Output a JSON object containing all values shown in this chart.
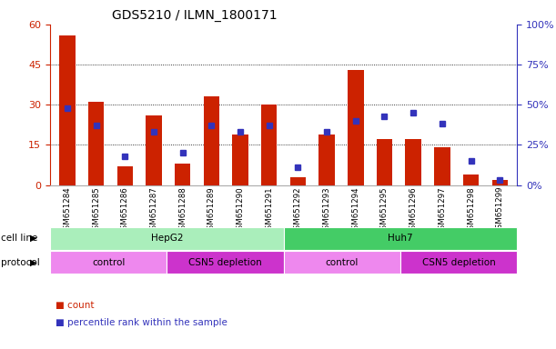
{
  "title": "GDS5210 / ILMN_1800171",
  "samples": [
    "GSM651284",
    "GSM651285",
    "GSM651286",
    "GSM651287",
    "GSM651288",
    "GSM651289",
    "GSM651290",
    "GSM651291",
    "GSM651292",
    "GSM651293",
    "GSM651294",
    "GSM651295",
    "GSM651296",
    "GSM651297",
    "GSM651298",
    "GSM651299"
  ],
  "red_values": [
    56,
    31,
    7,
    26,
    8,
    33,
    19,
    30,
    3,
    19,
    43,
    17,
    17,
    14,
    4,
    2
  ],
  "blue_values": [
    48,
    37,
    18,
    33,
    20,
    37,
    33,
    37,
    11,
    33,
    40,
    43,
    45,
    38,
    15,
    3
  ],
  "red_color": "#CC2200",
  "blue_color": "#3333BB",
  "ylim_left": [
    0,
    60
  ],
  "ylim_right": [
    0,
    100
  ],
  "yticks_left": [
    0,
    15,
    30,
    45,
    60
  ],
  "yticks_right": [
    0,
    25,
    50,
    75,
    100
  ],
  "ytick_labels_left": [
    "0",
    "15",
    "30",
    "45",
    "60"
  ],
  "ytick_labels_right": [
    "0%",
    "25%",
    "50%",
    "75%",
    "100%"
  ],
  "cell_line_hepg2": "HepG2",
  "cell_line_huh7": "Huh7",
  "protocol_control1": "control",
  "protocol_csn5_1": "CSN5 depletion",
  "protocol_control2": "control",
  "protocol_csn5_2": "CSN5 depletion",
  "cell_line_color_hepg2": "#AAEEBB",
  "cell_line_color_huh7": "#44CC66",
  "protocol_color_control": "#EE88EE",
  "protocol_color_csn5": "#CC33CC",
  "bar_width": 0.55,
  "legend_count_label": "count",
  "legend_percentile_label": "percentile rank within the sample",
  "plot_bg": "#FFFFFF",
  "fig_bg": "#FFFFFF"
}
